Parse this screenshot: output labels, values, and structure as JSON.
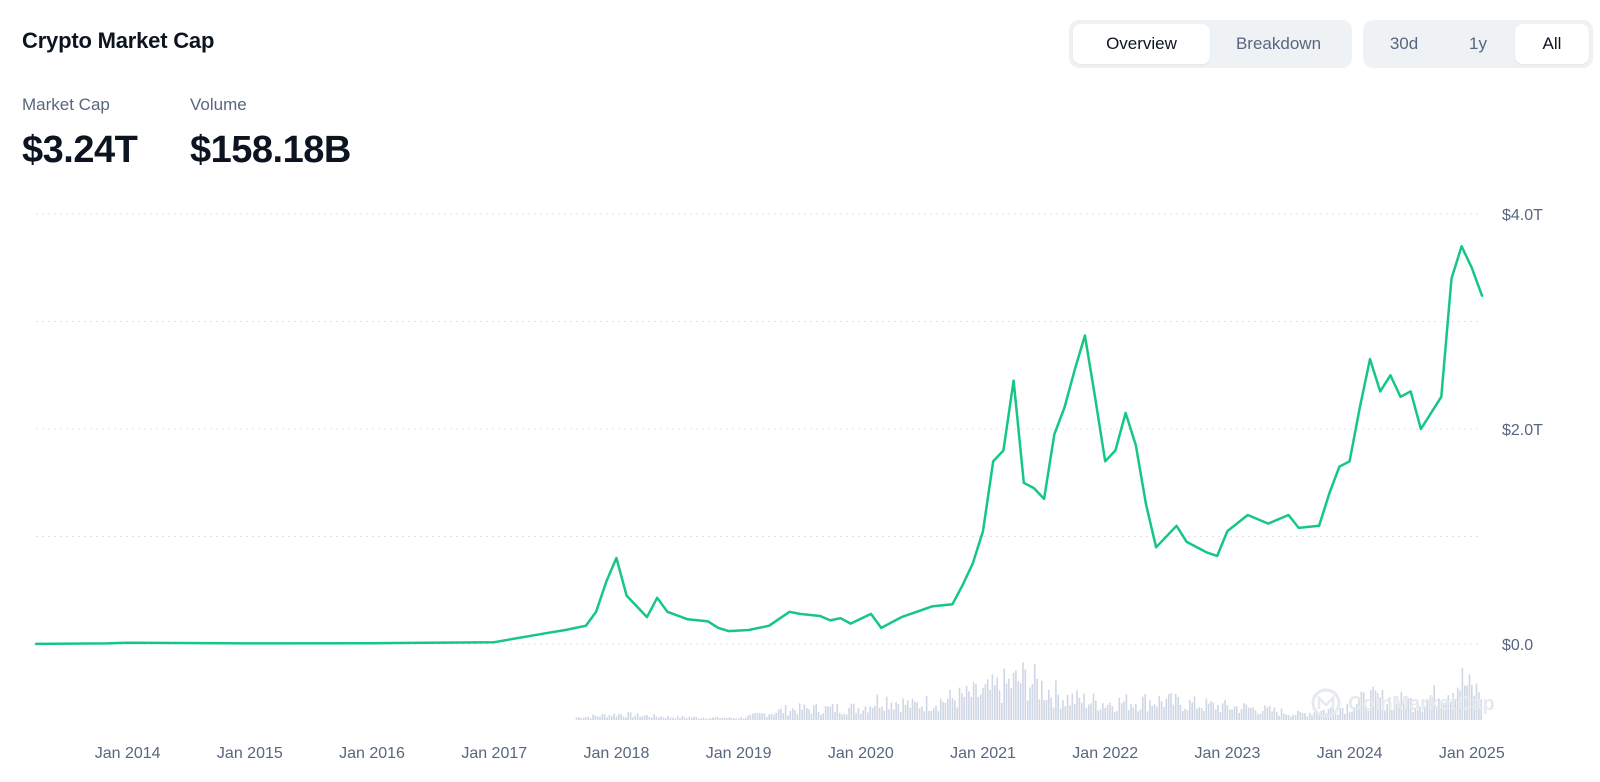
{
  "header": {
    "title": "Crypto Market Cap"
  },
  "view_toggle": {
    "items": [
      {
        "label": "Overview",
        "active": true
      },
      {
        "label": "Breakdown",
        "active": false
      }
    ]
  },
  "range_toggle": {
    "items": [
      {
        "label": "30d",
        "active": false
      },
      {
        "label": "1y",
        "active": false
      },
      {
        "label": "All",
        "active": true
      }
    ]
  },
  "stats": {
    "market_cap": {
      "label": "Market Cap",
      "value": "$3.24T"
    },
    "volume": {
      "label": "Volume",
      "value": "$158.18B"
    }
  },
  "watermark": "CoinMarketCap",
  "colors": {
    "line": "#16c784",
    "grid": "#e0e4ea",
    "volume": "#cfd6e4",
    "text_muted": "#58667e",
    "title": "#0d1421"
  },
  "chart_data": {
    "type": "area",
    "title": "Crypto Market Cap",
    "xlabel": "",
    "ylabel": "",
    "ylim": [
      0,
      4.0
    ],
    "xlim": [
      "2013-04",
      "2025-02"
    ],
    "y_ticks": [
      "$0.0",
      "$2.0T",
      "$4.0T"
    ],
    "y_tick_values": [
      0,
      2.0,
      4.0
    ],
    "x_ticks": [
      "Jan 2014",
      "Jan 2015",
      "Jan 2016",
      "Jan 2017",
      "Jan 2018",
      "Jan 2019",
      "Jan 2020",
      "Jan 2021",
      "Jan 2022",
      "Jan 2023",
      "Jan 2024",
      "Jan 2025"
    ],
    "grid": true,
    "series": [
      {
        "name": "Market Cap",
        "unit": "trillion USD",
        "points": [
          [
            "2013-04",
            0.001
          ],
          [
            "2013-11",
            0.006
          ],
          [
            "2014-01",
            0.011
          ],
          [
            "2015-01",
            0.006
          ],
          [
            "2016-01",
            0.007
          ],
          [
            "2017-01",
            0.017
          ],
          [
            "2017-06",
            0.1
          ],
          [
            "2017-08",
            0.13
          ],
          [
            "2017-10",
            0.17
          ],
          [
            "2017-11",
            0.3
          ],
          [
            "2017-12",
            0.58
          ],
          [
            "2018-01",
            0.8
          ],
          [
            "2018-02",
            0.45
          ],
          [
            "2018-03",
            0.35
          ],
          [
            "2018-04",
            0.25
          ],
          [
            "2018-05",
            0.43
          ],
          [
            "2018-06",
            0.3
          ],
          [
            "2018-08",
            0.23
          ],
          [
            "2018-10",
            0.21
          ],
          [
            "2018-11",
            0.15
          ],
          [
            "2018-12",
            0.12
          ],
          [
            "2019-02",
            0.13
          ],
          [
            "2019-04",
            0.17
          ],
          [
            "2019-06",
            0.3
          ],
          [
            "2019-07",
            0.28
          ],
          [
            "2019-09",
            0.26
          ],
          [
            "2019-10",
            0.22
          ],
          [
            "2019-11",
            0.24
          ],
          [
            "2019-12",
            0.19
          ],
          [
            "2020-02",
            0.28
          ],
          [
            "2020-03",
            0.15
          ],
          [
            "2020-05",
            0.25
          ],
          [
            "2020-08",
            0.35
          ],
          [
            "2020-10",
            0.37
          ],
          [
            "2020-11",
            0.55
          ],
          [
            "2020-12",
            0.75
          ],
          [
            "2021-01",
            1.05
          ],
          [
            "2021-02",
            1.7
          ],
          [
            "2021-03",
            1.8
          ],
          [
            "2021-04",
            2.45
          ],
          [
            "2021-05",
            1.5
          ],
          [
            "2021-06",
            1.45
          ],
          [
            "2021-07",
            1.35
          ],
          [
            "2021-08",
            1.95
          ],
          [
            "2021-09",
            2.2
          ],
          [
            "2021-10",
            2.55
          ],
          [
            "2021-11",
            2.87
          ],
          [
            "2021-12",
            2.3
          ],
          [
            "2022-01",
            1.7
          ],
          [
            "2022-02",
            1.8
          ],
          [
            "2022-03",
            2.15
          ],
          [
            "2022-04",
            1.85
          ],
          [
            "2022-05",
            1.3
          ],
          [
            "2022-06",
            0.9
          ],
          [
            "2022-08",
            1.1
          ],
          [
            "2022-09",
            0.95
          ],
          [
            "2022-11",
            0.85
          ],
          [
            "2022-12",
            0.82
          ],
          [
            "2023-01",
            1.05
          ],
          [
            "2023-03",
            1.2
          ],
          [
            "2023-05",
            1.12
          ],
          [
            "2023-07",
            1.2
          ],
          [
            "2023-08",
            1.08
          ],
          [
            "2023-10",
            1.1
          ],
          [
            "2023-11",
            1.4
          ],
          [
            "2023-12",
            1.65
          ],
          [
            "2024-01",
            1.7
          ],
          [
            "2024-02",
            2.2
          ],
          [
            "2024-03",
            2.65
          ],
          [
            "2024-04",
            2.35
          ],
          [
            "2024-05",
            2.5
          ],
          [
            "2024-06",
            2.3
          ],
          [
            "2024-07",
            2.35
          ],
          [
            "2024-08",
            2.0
          ],
          [
            "2024-09",
            2.15
          ],
          [
            "2024-10",
            2.3
          ],
          [
            "2024-11",
            3.4
          ],
          [
            "2024-12",
            3.7
          ],
          [
            "2025-01",
            3.5
          ],
          [
            "2025-02",
            3.24
          ]
        ]
      },
      {
        "name": "Volume",
        "unit": "relative",
        "points": [
          [
            "2017-09",
            0.05
          ],
          [
            "2018-01",
            0.12
          ],
          [
            "2018-06",
            0.06
          ],
          [
            "2019-01",
            0.04
          ],
          [
            "2019-06",
            0.22
          ],
          [
            "2020-01",
            0.25
          ],
          [
            "2020-03",
            0.45
          ],
          [
            "2020-06",
            0.3
          ],
          [
            "2021-01",
            0.55
          ],
          [
            "2021-05",
            0.85
          ],
          [
            "2021-09",
            0.45
          ],
          [
            "2022-01",
            0.35
          ],
          [
            "2022-06",
            0.4
          ],
          [
            "2022-11",
            0.3
          ],
          [
            "2023-03",
            0.25
          ],
          [
            "2023-08",
            0.12
          ],
          [
            "2023-12",
            0.25
          ],
          [
            "2024-03",
            0.45
          ],
          [
            "2024-08",
            0.35
          ],
          [
            "2024-12",
            0.8
          ],
          [
            "2025-01",
            0.6
          ]
        ]
      }
    ]
  }
}
